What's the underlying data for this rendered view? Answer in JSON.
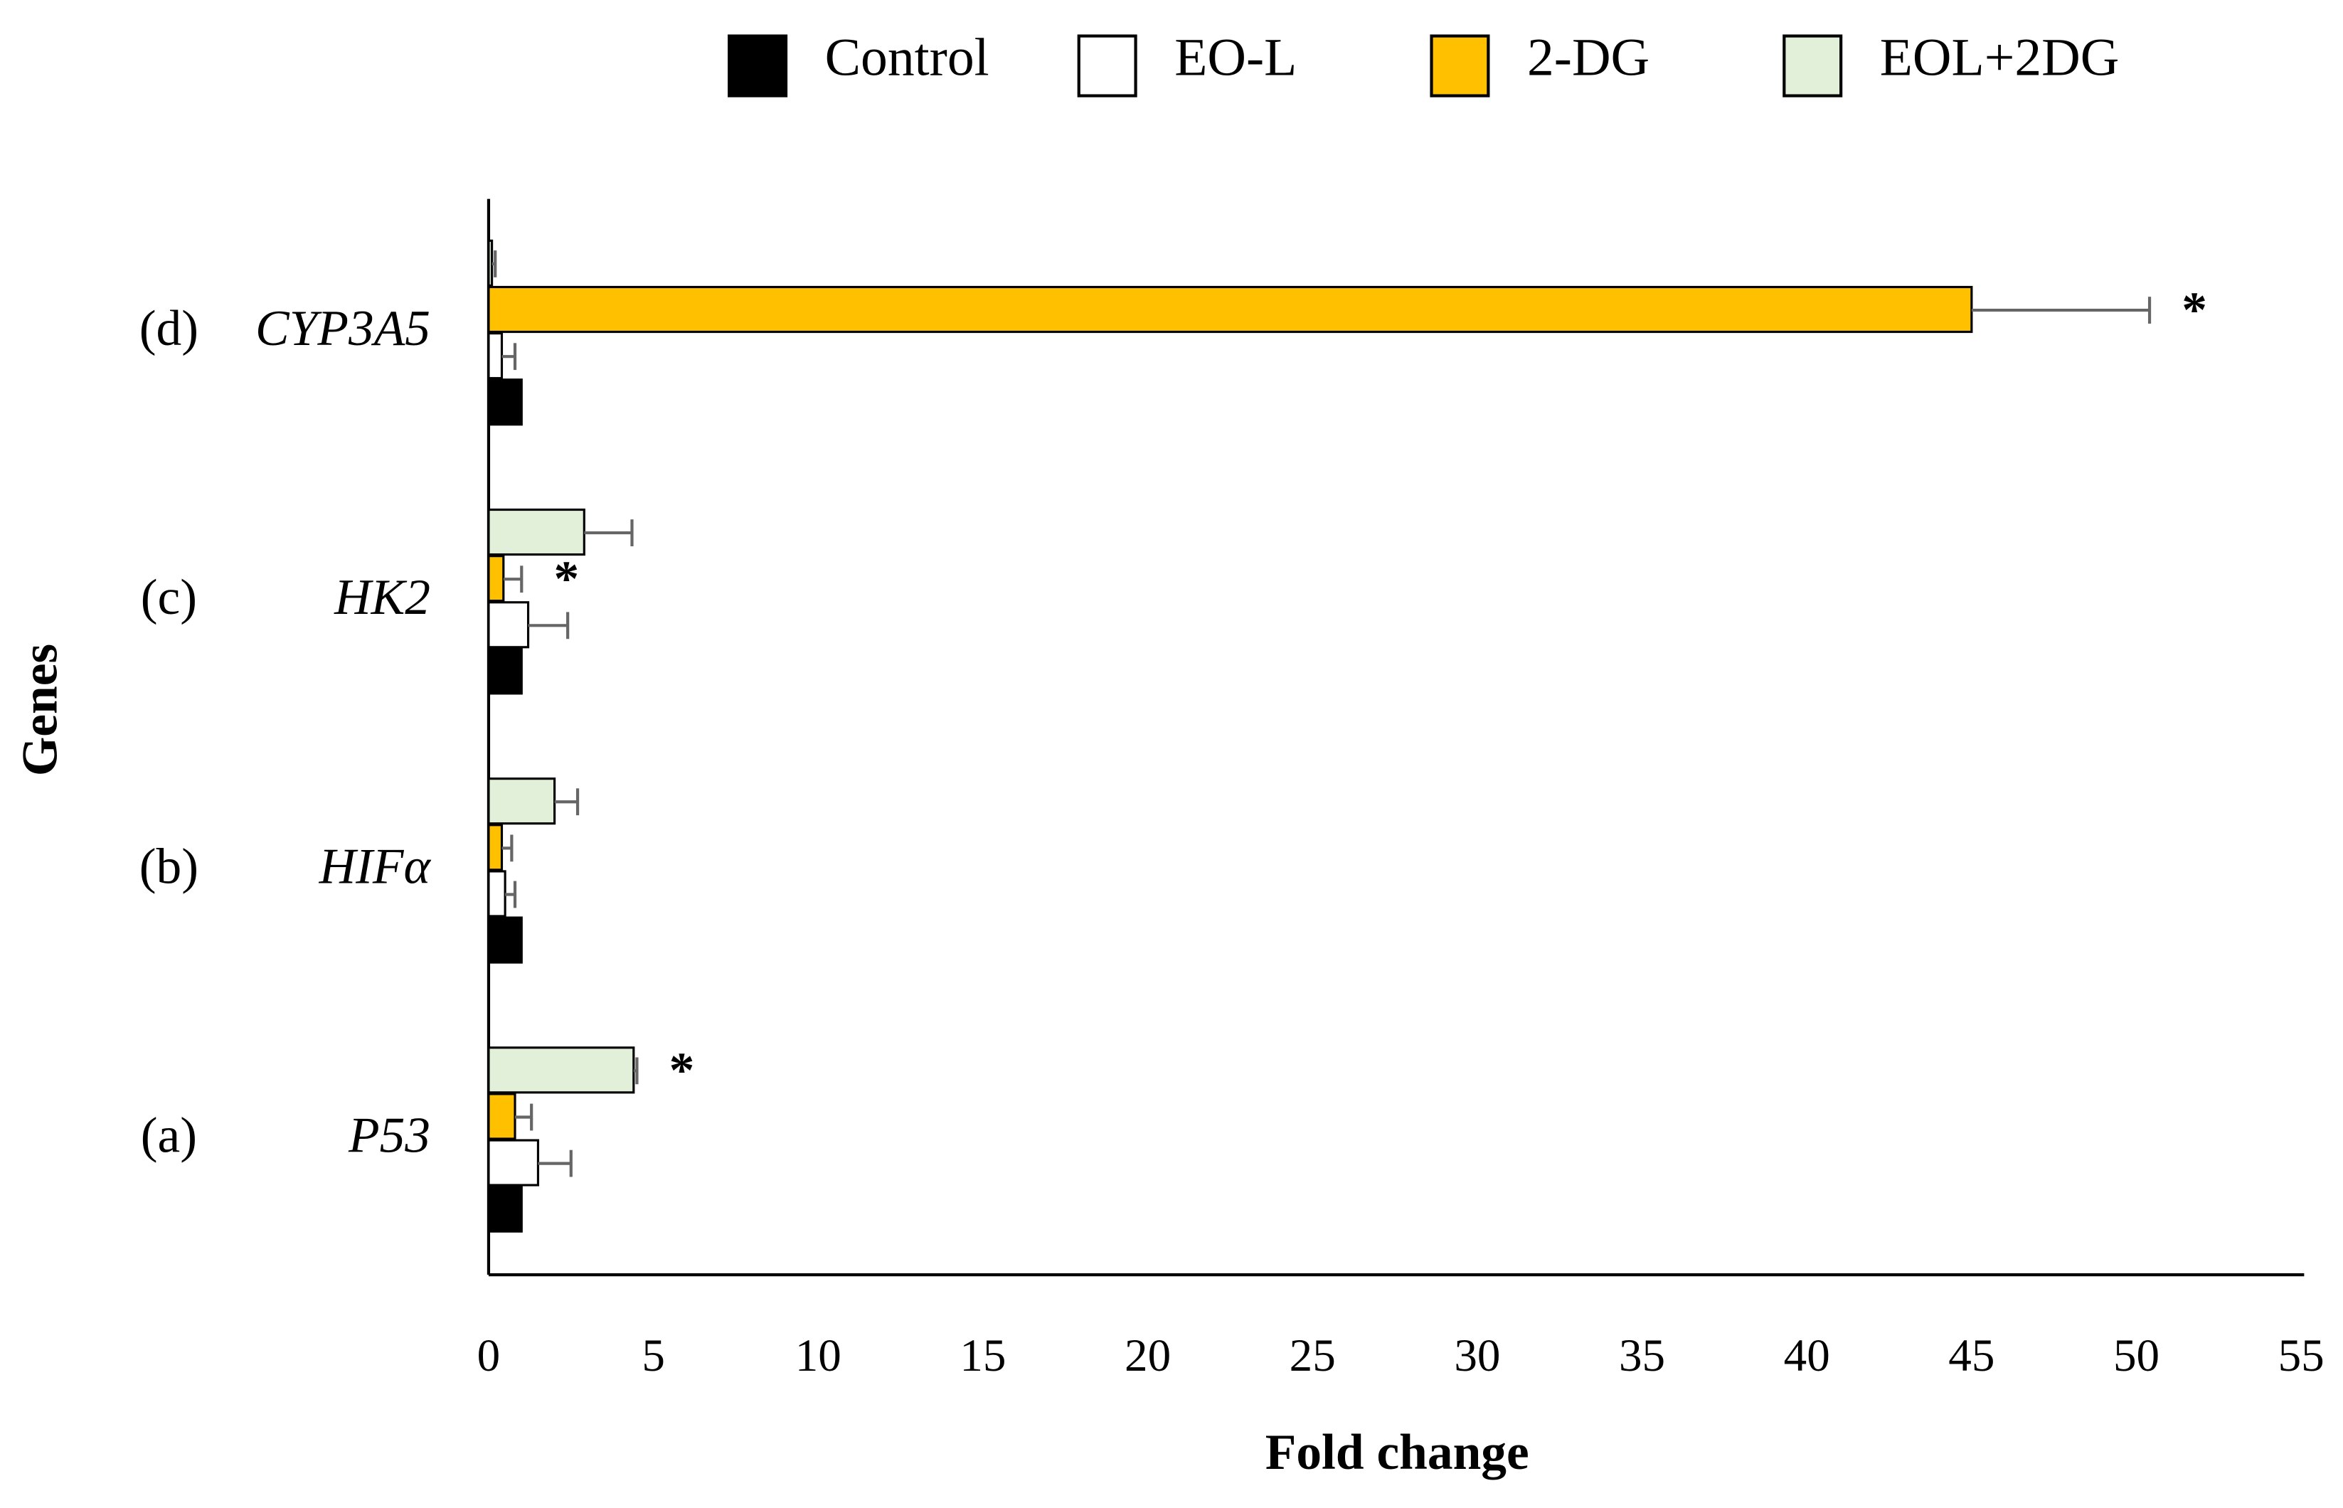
{
  "chart_data": {
    "type": "hbar",
    "xlabel": "Fold change",
    "ylabel": "Genes",
    "categories": [
      "P53",
      "HIFα",
      "HK2",
      "CYP3A5"
    ],
    "panel_labels": [
      "(a)",
      "(b)",
      "(c)",
      "(d)"
    ],
    "series": [
      {
        "name": "Control",
        "color": "#000000",
        "values": [
          1,
          1,
          1,
          1
        ],
        "errors": [
          null,
          null,
          null,
          null
        ],
        "markers": [
          null,
          null,
          null,
          null
        ]
      },
      {
        "name": "EO-L",
        "color": "#ffffff",
        "values": [
          1.5,
          0.5,
          1.2,
          0.4
        ],
        "errors": [
          1.0,
          0.3,
          1.2,
          0.4
        ],
        "markers": [
          null,
          null,
          null,
          null
        ]
      },
      {
        "name": "2-DG",
        "color": "#ffc000",
        "values": [
          0.8,
          0.4,
          0.45,
          45
        ],
        "errors": [
          0.5,
          0.3,
          0.55,
          5.4
        ],
        "markers": [
          null,
          null,
          "*",
          "*"
        ]
      },
      {
        "name": "EOL+2DG",
        "color": "#e2f0d9",
        "values": [
          4.4,
          2.0,
          2.9,
          0.1
        ],
        "errors": [
          0.1,
          0.7,
          1.45,
          0.1
        ],
        "markers": [
          "*",
          null,
          null,
          null
        ]
      }
    ],
    "xlim": [
      0,
      55
    ],
    "xticks": [
      0,
      5,
      10,
      15,
      20,
      25,
      30,
      35,
      40,
      45,
      50,
      55
    ],
    "legend": "top",
    "grid": false
  }
}
